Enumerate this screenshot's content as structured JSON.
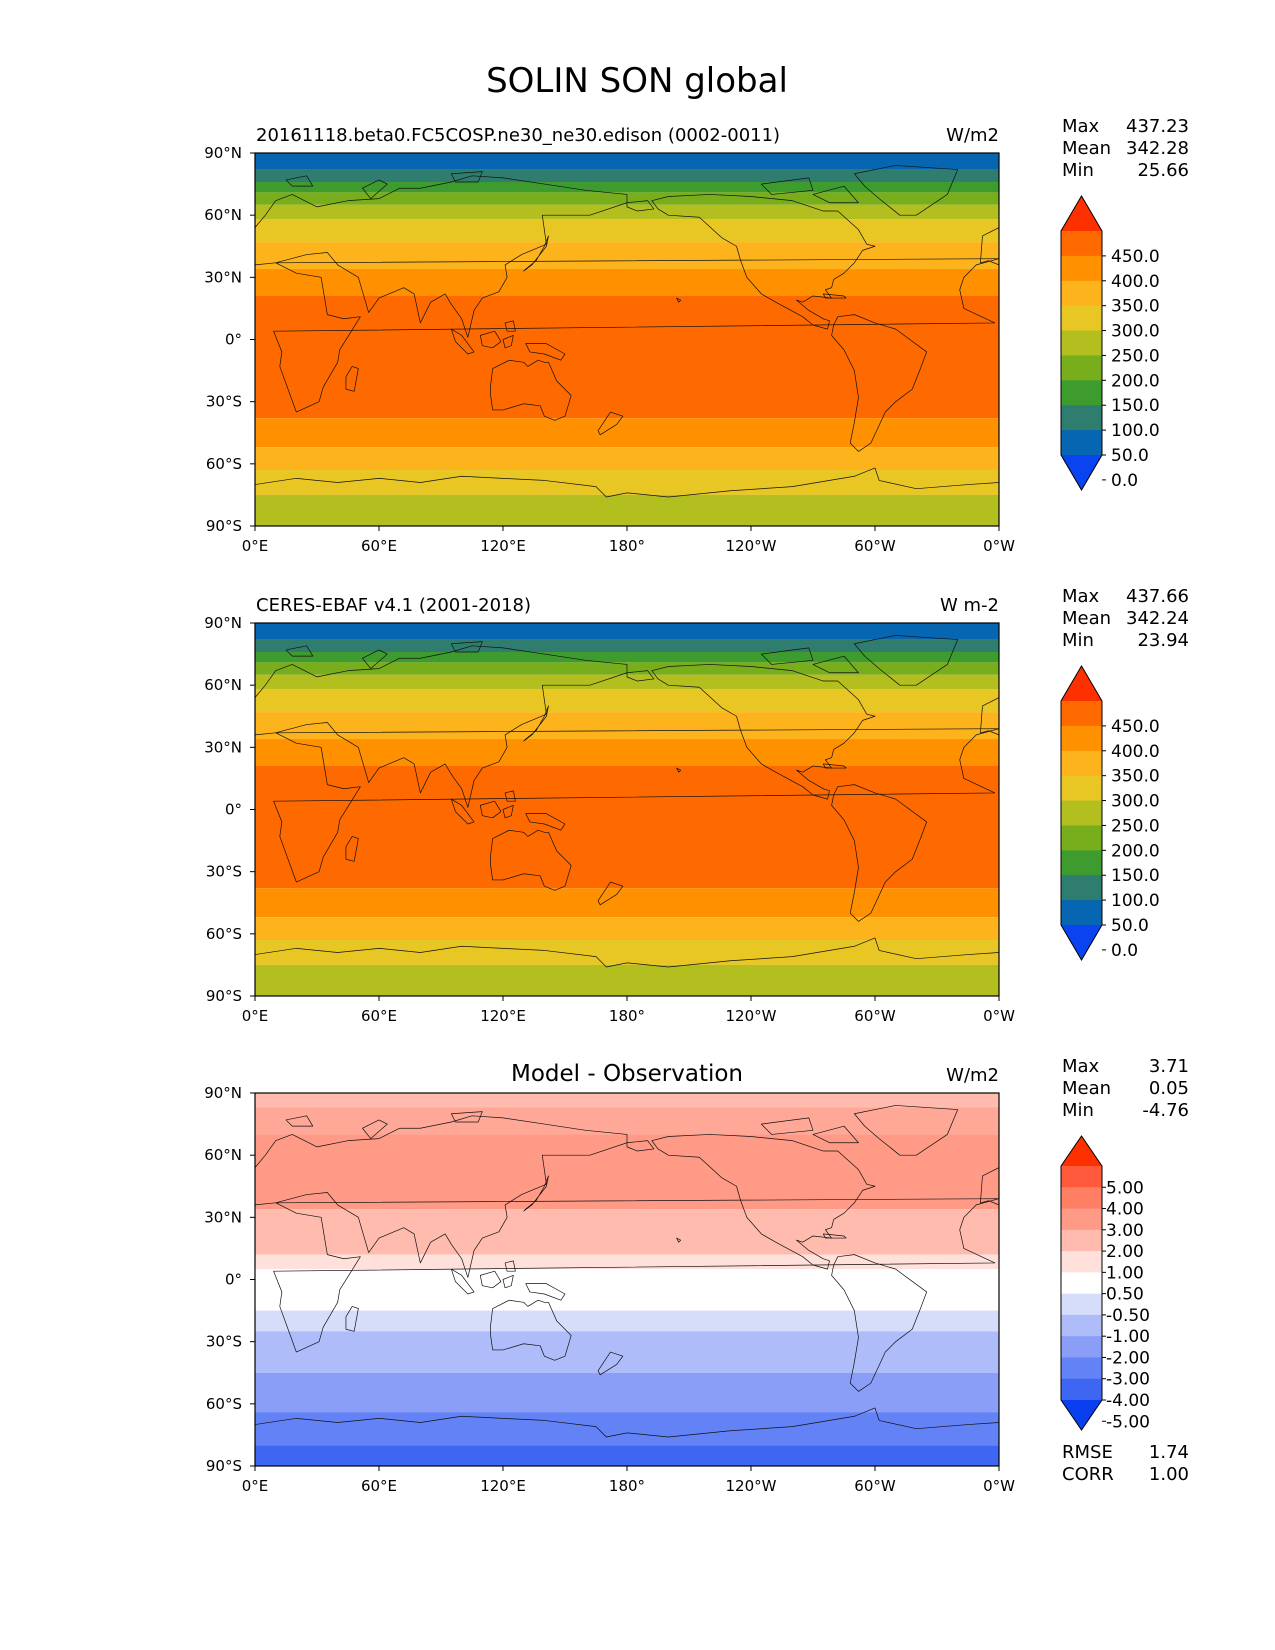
{
  "figure": {
    "title": "SOLIN SON global"
  },
  "axes": {
    "lat_ticks": [
      "90°N",
      "60°N",
      "30°N",
      "0°",
      "30°S",
      "60°S",
      "90°S"
    ],
    "lon_ticks": [
      "0°E",
      "60°E",
      "120°E",
      "180°",
      "120°W",
      "60°W",
      "0°W"
    ],
    "lat_range": [
      -90,
      90
    ],
    "lon_range": [
      0,
      360
    ]
  },
  "panels": [
    {
      "id": "model",
      "title": "20161118.beta0.FC5COSP.ne30_ne30.edison (0002-0011)",
      "units": "W/m2",
      "stats": {
        "Max": "437.23",
        "Mean": "342.28",
        "Min": "25.66"
      },
      "colorbar": {
        "labels": [
          "450.0",
          "400.0",
          "350.0",
          "300.0",
          "250.0",
          "200.0",
          "150.0",
          "100.0",
          "50.0",
          "0.0"
        ],
        "colors": [
          "#ff3000",
          "#ff6a00",
          "#ff9000",
          "#fdb31c",
          "#e8c624",
          "#b2bf1f",
          "#78ad1c",
          "#3e9c2e",
          "#2f7d6e",
          "#0666b2",
          "#0a44f0"
        ]
      },
      "bands": [
        {
          "lat_from": 90,
          "lat_to": 82,
          "color": "#0666b2"
        },
        {
          "lat_from": 82,
          "lat_to": 76,
          "color": "#2f7d6e"
        },
        {
          "lat_from": 76,
          "lat_to": 71,
          "color": "#3e9c2e"
        },
        {
          "lat_from": 71,
          "lat_to": 65,
          "color": "#78ad1c"
        },
        {
          "lat_from": 65,
          "lat_to": 58,
          "color": "#b2bf1f"
        },
        {
          "lat_from": 58,
          "lat_to": 47,
          "color": "#e8c624"
        },
        {
          "lat_from": 47,
          "lat_to": 34,
          "color": "#fdb31c"
        },
        {
          "lat_from": 34,
          "lat_to": 21,
          "color": "#ff9000"
        },
        {
          "lat_from": 21,
          "lat_to": -38,
          "color": "#ff6a00"
        },
        {
          "lat_from": -38,
          "lat_to": -52,
          "color": "#ff9000"
        },
        {
          "lat_from": -52,
          "lat_to": -63,
          "color": "#fdb31c"
        },
        {
          "lat_from": -63,
          "lat_to": -75,
          "color": "#e8c624"
        },
        {
          "lat_from": -75,
          "lat_to": -90,
          "color": "#b2bf1f"
        }
      ]
    },
    {
      "id": "obs",
      "title": "CERES-EBAF v4.1 (2001-2018)",
      "units": "W m-2",
      "stats": {
        "Max": "437.66",
        "Mean": "342.24",
        "Min": "23.94"
      },
      "colorbar": {
        "labels": [
          "450.0",
          "400.0",
          "350.0",
          "300.0",
          "250.0",
          "200.0",
          "150.0",
          "100.0",
          "50.0",
          "0.0"
        ],
        "colors": [
          "#ff3000",
          "#ff6a00",
          "#ff9000",
          "#fdb31c",
          "#e8c624",
          "#b2bf1f",
          "#78ad1c",
          "#3e9c2e",
          "#2f7d6e",
          "#0666b2",
          "#0a44f0"
        ]
      },
      "bands": [
        {
          "lat_from": 90,
          "lat_to": 82,
          "color": "#0666b2"
        },
        {
          "lat_from": 82,
          "lat_to": 76,
          "color": "#2f7d6e"
        },
        {
          "lat_from": 76,
          "lat_to": 71,
          "color": "#3e9c2e"
        },
        {
          "lat_from": 71,
          "lat_to": 65,
          "color": "#78ad1c"
        },
        {
          "lat_from": 65,
          "lat_to": 58,
          "color": "#b2bf1f"
        },
        {
          "lat_from": 58,
          "lat_to": 47,
          "color": "#e8c624"
        },
        {
          "lat_from": 47,
          "lat_to": 34,
          "color": "#fdb31c"
        },
        {
          "lat_from": 34,
          "lat_to": 21,
          "color": "#ff9000"
        },
        {
          "lat_from": 21,
          "lat_to": -38,
          "color": "#ff6a00"
        },
        {
          "lat_from": -38,
          "lat_to": -52,
          "color": "#ff9000"
        },
        {
          "lat_from": -52,
          "lat_to": -63,
          "color": "#fdb31c"
        },
        {
          "lat_from": -63,
          "lat_to": -75,
          "color": "#e8c624"
        },
        {
          "lat_from": -75,
          "lat_to": -90,
          "color": "#b2bf1f"
        }
      ]
    },
    {
      "id": "diff",
      "title": "Model - Observation",
      "units": "W/m2",
      "stats": {
        "Max": "3.71",
        "Mean": "0.05",
        "Min": "-4.76"
      },
      "extra_stats": {
        "RMSE": "1.74",
        "CORR": "1.00"
      },
      "colorbar": {
        "labels": [
          "5.00",
          "4.00",
          "3.00",
          "2.00",
          "1.00",
          "0.50",
          "-0.50",
          "-1.00",
          "-2.00",
          "-3.00",
          "-4.00",
          "-5.00"
        ],
        "colors": [
          "#ff3000",
          "#ff5a3c",
          "#ff7f64",
          "#ff9a86",
          "#ffbbad",
          "#ffe0da",
          "#ffffff",
          "#d5ddfb",
          "#aebcfa",
          "#8a9ef8",
          "#6382f6",
          "#3e66f3",
          "#0a3ff0"
        ]
      },
      "bands": [
        {
          "lat_from": 90,
          "lat_to": 83,
          "color": "#ffbbad"
        },
        {
          "lat_from": 83,
          "lat_to": 70,
          "color": "#ffa898"
        },
        {
          "lat_from": 70,
          "lat_to": 34,
          "color": "#ff9a86"
        },
        {
          "lat_from": 34,
          "lat_to": 12,
          "color": "#ffbbad"
        },
        {
          "lat_from": 12,
          "lat_to": 5,
          "color": "#ffe0da"
        },
        {
          "lat_from": 5,
          "lat_to": -15,
          "color": "#ffffff"
        },
        {
          "lat_from": -15,
          "lat_to": -25,
          "color": "#d5ddfb"
        },
        {
          "lat_from": -25,
          "lat_to": -45,
          "color": "#aebcfa"
        },
        {
          "lat_from": -45,
          "lat_to": -64,
          "color": "#8a9ef8"
        },
        {
          "lat_from": -64,
          "lat_to": -80,
          "color": "#6382f6"
        },
        {
          "lat_from": -80,
          "lat_to": -90,
          "color": "#3e66f3"
        }
      ]
    }
  ]
}
